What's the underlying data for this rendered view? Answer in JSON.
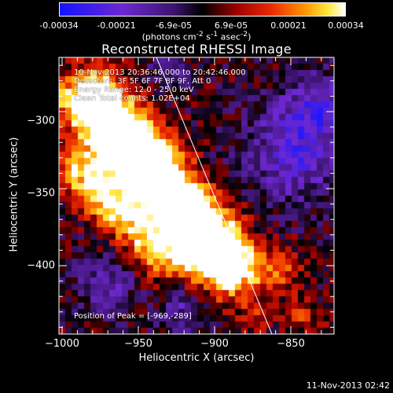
{
  "colorbar": {
    "ticks": [
      "-0.00034",
      "-0.00021",
      "-6.9e-05",
      "6.9e-05",
      "0.00021",
      "0.00034"
    ],
    "units_html": "(photons cm<sup>-2</sup> s<sup>-1</sup> asec<sup>-2</sup>)"
  },
  "title": "Reconstructed RHESSI Image",
  "info": {
    "time_range": "10-Nov-2013 20:36:46.000 to 20:42:46.000",
    "detectors": "Detectors: 3F 5F 6F 7F 8F 9F, Att 0",
    "energy": "Energy Range: 12.0 - 25.0 keV",
    "clean": "Clean   Total counts: 1.02E+04"
  },
  "peak": "Position of Peak = [-969,-289]",
  "axes": {
    "x_ticks": [
      "−1000",
      "−950",
      "−900",
      "−850"
    ],
    "y_ticks": [
      "−300",
      "−350",
      "−400"
    ],
    "xlabel": "Heliocentric X (arcsec)",
    "ylabel": "Heliocentric Y (arcsec)"
  },
  "timestamp": "11-Nov-2013 02:42",
  "colors": {
    "background": "#000000",
    "limb": "#ffffff"
  }
}
